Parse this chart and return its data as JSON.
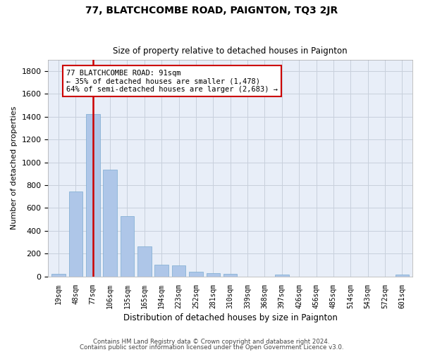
{
  "title1": "77, BLATCHCOMBE ROAD, PAIGNTON, TQ3 2JR",
  "title2": "Size of property relative to detached houses in Paignton",
  "xlabel": "Distribution of detached houses by size in Paignton",
  "ylabel": "Number of detached properties",
  "footer1": "Contains HM Land Registry data © Crown copyright and database right 2024.",
  "footer2": "Contains public sector information licensed under the Open Government Licence v3.0.",
  "annotation_line1": "77 BLATCHCOMBE ROAD: 91sqm",
  "annotation_line2": "← 35% of detached houses are smaller (1,478)",
  "annotation_line3": "64% of semi-detached houses are larger (2,683) →",
  "bar_color": "#aec6e8",
  "bar_edge_color": "#7aaad0",
  "subject_line_color": "#cc0000",
  "annotation_box_color": "#cc0000",
  "categories": [
    "19sqm",
    "48sqm",
    "77sqm",
    "106sqm",
    "135sqm",
    "165sqm",
    "194sqm",
    "223sqm",
    "252sqm",
    "281sqm",
    "310sqm",
    "339sqm",
    "368sqm",
    "397sqm",
    "426sqm",
    "456sqm",
    "485sqm",
    "514sqm",
    "543sqm",
    "572sqm",
    "601sqm"
  ],
  "values": [
    20,
    745,
    1425,
    935,
    530,
    265,
    105,
    95,
    40,
    28,
    20,
    0,
    0,
    14,
    0,
    0,
    0,
    0,
    0,
    0,
    15
  ],
  "subject_bar_index": 2,
  "ylim": [
    0,
    1900
  ],
  "yticks": [
    0,
    200,
    400,
    600,
    800,
    1000,
    1200,
    1400,
    1600,
    1800
  ],
  "background_color": "#ffffff",
  "axes_bg_color": "#e8eef8",
  "grid_color": "#c8d0dc"
}
